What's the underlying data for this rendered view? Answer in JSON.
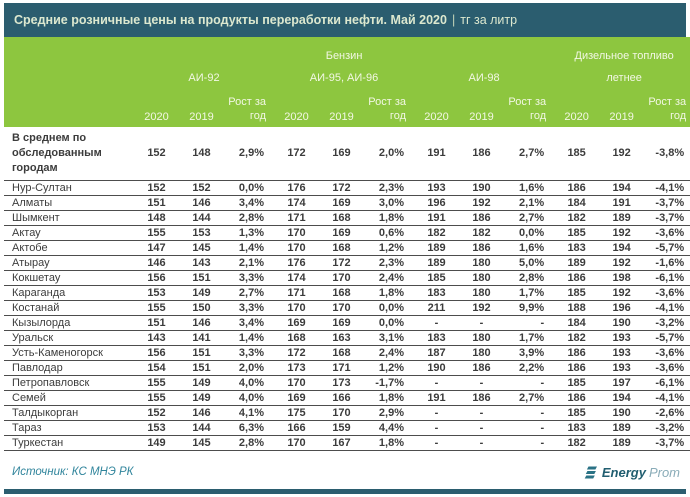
{
  "header": {
    "title": "Средние розничные цены на продукты переработки нефти. Май 2020",
    "divider": "|",
    "unit": "тг за литр"
  },
  "colors": {
    "teal": "#2b5d6f",
    "green": "#8dc63f",
    "source_text": "#31859c",
    "body_text": "#3c3c3c"
  },
  "chart_data": {
    "type": "table",
    "title": "Средние розничные цены на продукты переработки нефти. Май 2020",
    "unit": "тг за литр",
    "group_row": [
      {
        "label": "Бензин",
        "span": 9
      },
      {
        "label": "Дизельное топливо",
        "span": 3
      }
    ],
    "grade_row": [
      {
        "label": "АИ-92",
        "span": 3
      },
      {
        "label": "АИ-95, АИ-96",
        "span": 3
      },
      {
        "label": "АИ-98",
        "span": 3
      },
      {
        "label": "летнее",
        "span": 3
      }
    ],
    "year_headers": [
      "2020",
      "2019",
      "Рост за год"
    ],
    "rows": [
      {
        "label": "В среднем по обследованным городам",
        "bold": true,
        "values": [
          "152",
          "148",
          "2,9%",
          "172",
          "169",
          "2,0%",
          "191",
          "186",
          "2,7%",
          "185",
          "192",
          "-3,8%"
        ]
      },
      {
        "label": "Нур-Султан",
        "values": [
          "152",
          "152",
          "0,0%",
          "176",
          "172",
          "2,3%",
          "193",
          "190",
          "1,6%",
          "186",
          "194",
          "-4,1%"
        ]
      },
      {
        "label": "Алматы",
        "values": [
          "151",
          "146",
          "3,4%",
          "174",
          "169",
          "3,0%",
          "196",
          "192",
          "2,1%",
          "184",
          "191",
          "-3,7%"
        ]
      },
      {
        "label": "Шымкент",
        "values": [
          "148",
          "144",
          "2,8%",
          "171",
          "168",
          "1,8%",
          "191",
          "186",
          "2,7%",
          "182",
          "189",
          "-3,7%"
        ]
      },
      {
        "label": "Актау",
        "values": [
          "155",
          "153",
          "1,3%",
          "170",
          "169",
          "0,6%",
          "182",
          "182",
          "0,0%",
          "185",
          "192",
          "-3,6%"
        ]
      },
      {
        "label": "Актобе",
        "values": [
          "147",
          "145",
          "1,4%",
          "170",
          "168",
          "1,2%",
          "189",
          "186",
          "1,6%",
          "183",
          "194",
          "-5,7%"
        ]
      },
      {
        "label": "Атырау",
        "values": [
          "146",
          "143",
          "2,1%",
          "176",
          "172",
          "2,3%",
          "189",
          "180",
          "5,0%",
          "189",
          "192",
          "-1,6%"
        ]
      },
      {
        "label": "Кокшетау",
        "values": [
          "156",
          "151",
          "3,3%",
          "174",
          "170",
          "2,4%",
          "185",
          "180",
          "2,8%",
          "186",
          "198",
          "-6,1%"
        ]
      },
      {
        "label": "Караганда",
        "values": [
          "153",
          "149",
          "2,7%",
          "171",
          "168",
          "1,8%",
          "183",
          "180",
          "1,7%",
          "185",
          "192",
          "-3,6%"
        ]
      },
      {
        "label": "Костанай",
        "values": [
          "155",
          "150",
          "3,3%",
          "170",
          "170",
          "0,0%",
          "211",
          "192",
          "9,9%",
          "188",
          "196",
          "-4,1%"
        ]
      },
      {
        "label": "Кызылорда",
        "values": [
          "151",
          "146",
          "3,4%",
          "169",
          "169",
          "0,0%",
          "-",
          "-",
          "-",
          "184",
          "190",
          "-3,2%"
        ]
      },
      {
        "label": "Уральск",
        "values": [
          "143",
          "141",
          "1,4%",
          "168",
          "163",
          "3,1%",
          "183",
          "180",
          "1,7%",
          "182",
          "193",
          "-5,7%"
        ]
      },
      {
        "label": "Усть-Каменогорск",
        "values": [
          "156",
          "151",
          "3,3%",
          "172",
          "168",
          "2,4%",
          "187",
          "180",
          "3,9%",
          "186",
          "193",
          "-3,6%"
        ]
      },
      {
        "label": "Павлодар",
        "values": [
          "154",
          "151",
          "2,0%",
          "173",
          "171",
          "1,2%",
          "190",
          "186",
          "2,2%",
          "186",
          "193",
          "-3,6%"
        ]
      },
      {
        "label": "Петропавловск",
        "values": [
          "155",
          "149",
          "4,0%",
          "170",
          "173",
          "-1,7%",
          "-",
          "-",
          "-",
          "185",
          "197",
          "-6,1%"
        ]
      },
      {
        "label": "Семей",
        "values": [
          "155",
          "149",
          "4,0%",
          "169",
          "166",
          "1,8%",
          "191",
          "186",
          "2,7%",
          "186",
          "194",
          "-4,1%"
        ]
      },
      {
        "label": "Талдыкорган",
        "values": [
          "152",
          "146",
          "4,1%",
          "175",
          "170",
          "2,9%",
          "-",
          "-",
          "-",
          "185",
          "190",
          "-2,6%"
        ]
      },
      {
        "label": "Тараз",
        "values": [
          "153",
          "144",
          "6,3%",
          "166",
          "159",
          "4,4%",
          "-",
          "-",
          "-",
          "183",
          "189",
          "-3,2%"
        ]
      },
      {
        "label": "Туркестан",
        "values": [
          "149",
          "145",
          "2,8%",
          "170",
          "167",
          "1,8%",
          "-",
          "-",
          "-",
          "182",
          "189",
          "-3,7%"
        ]
      }
    ]
  },
  "footer": {
    "source": "Источник: КС МНЭ РК",
    "logo_bold": "Energy",
    "logo_light": "Prom"
  }
}
